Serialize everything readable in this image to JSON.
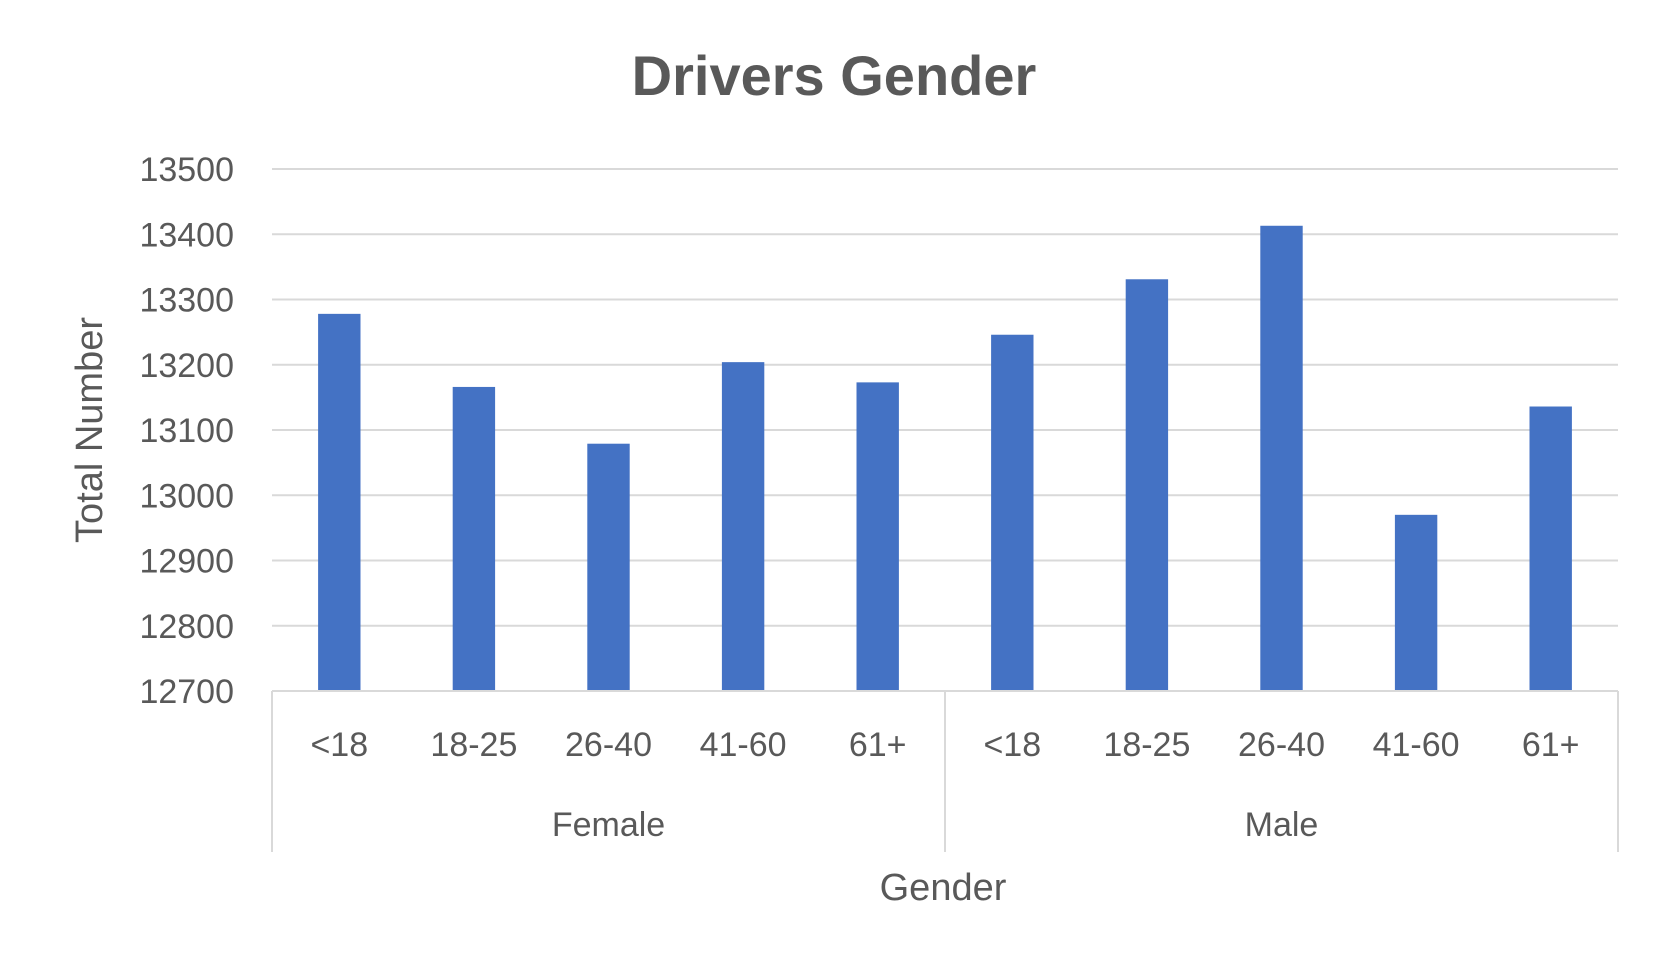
{
  "chart_data": {
    "type": "bar",
    "title": "Drivers Gender",
    "xlabel": "Gender",
    "ylabel": "Total Number",
    "ylim": [
      12700,
      13500
    ],
    "yticks": [
      12700,
      12800,
      12900,
      13000,
      13100,
      13200,
      13300,
      13400,
      13500
    ],
    "grid": true,
    "bar_color": "#4472C4",
    "groups": [
      {
        "name": "Female",
        "categories": [
          "<18",
          "18-25",
          "26-40",
          "41-60",
          "61+"
        ],
        "values": [
          13278,
          13166,
          13079,
          13204,
          13173
        ]
      },
      {
        "name": "Male",
        "categories": [
          "<18",
          "18-25",
          "26-40",
          "41-60",
          "61+"
        ],
        "values": [
          13246,
          13331,
          13413,
          12970,
          13136
        ]
      }
    ]
  }
}
